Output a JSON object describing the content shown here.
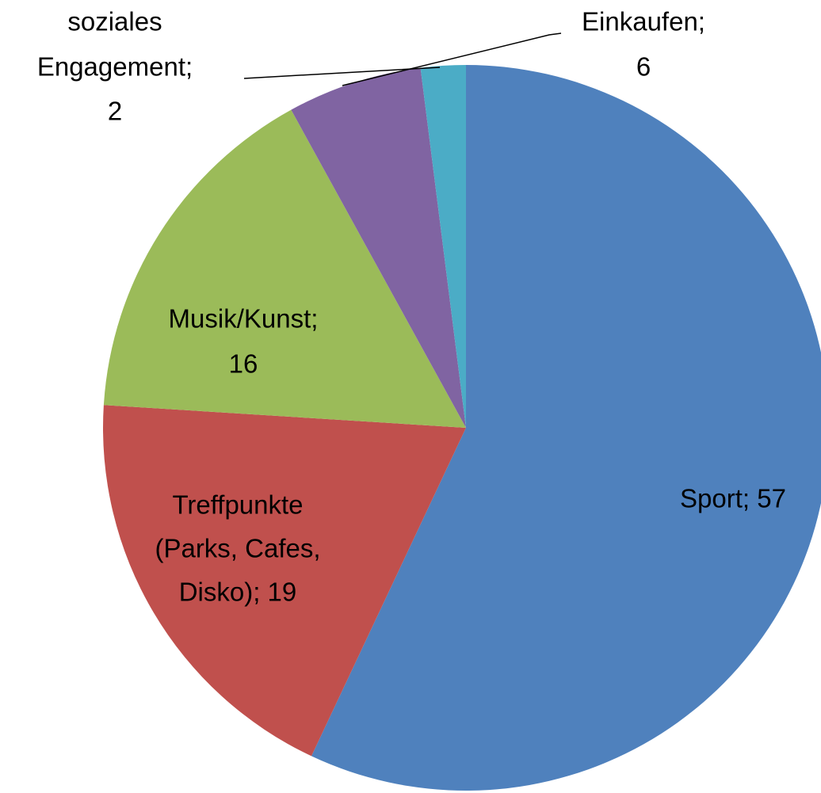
{
  "chart_data": {
    "type": "pie",
    "values": [
      57,
      19,
      16,
      6,
      2
    ],
    "value_labels": [
      [
        "Sport; 57"
      ],
      [
        "Treffpunkte",
        "(Parks, Cafes,",
        "Disko); 19"
      ],
      [
        "Musik/Kunst;",
        "16"
      ],
      [
        "Einkaufen;",
        "6"
      ],
      [
        "soziales",
        "Engagement;",
        "2"
      ]
    ],
    "colors": [
      "#4f81bd",
      "#c0504d",
      "#9bbb59",
      "#8064a2",
      "#4bacc6"
    ]
  }
}
